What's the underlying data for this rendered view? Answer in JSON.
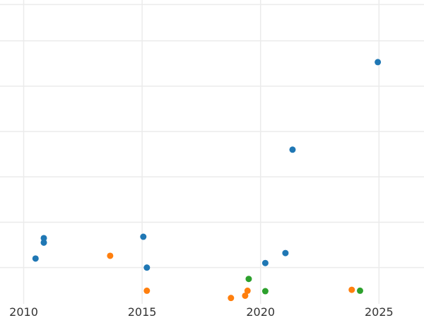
{
  "chart_data": {
    "type": "scatter",
    "title": "",
    "xlabel": "",
    "ylabel": "",
    "xlim": [
      2009.0,
      2026.9
    ],
    "ylim": [
      -0.1,
      6.6
    ],
    "grid": true,
    "legend": "none",
    "x_ticks": [
      2010,
      2015,
      2020,
      2025
    ],
    "x_tick_labels": [
      "2010",
      "2015",
      "2020",
      "2025"
    ],
    "y_gridlines": [
      0.7,
      1.7,
      2.7,
      3.7,
      4.7,
      5.7,
      6.5
    ],
    "series": [
      {
        "color": "#1f77b4",
        "points": [
          {
            "x": 2010.5,
            "y": 0.9
          },
          {
            "x": 2010.85,
            "y": 1.35
          },
          {
            "x": 2010.85,
            "y": 1.25
          },
          {
            "x": 2015.05,
            "y": 1.38
          },
          {
            "x": 2015.2,
            "y": 0.7
          },
          {
            "x": 2020.2,
            "y": 0.8
          },
          {
            "x": 2021.05,
            "y": 1.02
          },
          {
            "x": 2021.35,
            "y": 3.3
          },
          {
            "x": 2024.95,
            "y": 5.23
          }
        ]
      },
      {
        "color": "#ff7f0e",
        "points": [
          {
            "x": 2013.65,
            "y": 0.96
          },
          {
            "x": 2015.2,
            "y": 0.19
          },
          {
            "x": 2018.75,
            "y": 0.03
          },
          {
            "x": 2019.35,
            "y": 0.08
          },
          {
            "x": 2019.45,
            "y": 0.19
          },
          {
            "x": 2023.85,
            "y": 0.21
          }
        ]
      },
      {
        "color": "#2ca02c",
        "points": [
          {
            "x": 2019.5,
            "y": 0.45
          },
          {
            "x": 2020.2,
            "y": 0.18
          },
          {
            "x": 2024.2,
            "y": 0.19
          }
        ]
      }
    ]
  }
}
